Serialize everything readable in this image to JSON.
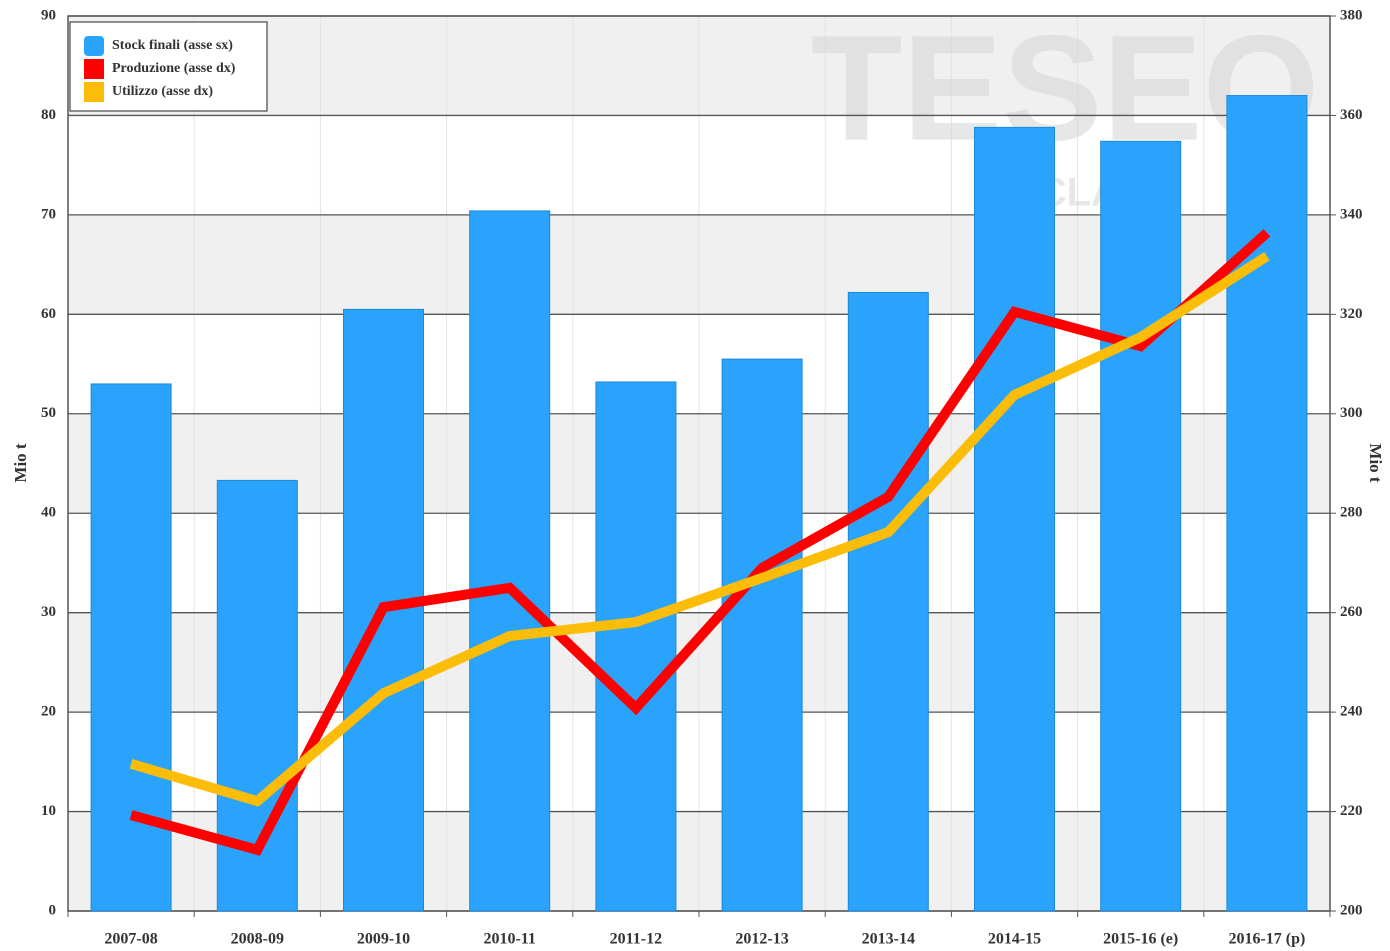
{
  "chart_data": {
    "type": "bar_line",
    "categories": [
      "2007-08",
      "2008-09",
      "2009-10",
      "2010-11",
      "2011-12",
      "2012-13",
      "2013-14",
      "2014-15",
      "2015-16 (e)",
      "2016-17 (p)"
    ],
    "series": [
      {
        "name": "Stock finali (asse sx)",
        "color": "#29a3fb",
        "type": "bar",
        "values": [
          53.0,
          43.3,
          60.5,
          70.4,
          53.2,
          55.5,
          62.2,
          78.8,
          77.4,
          82.0
        ]
      },
      {
        "name": "Produzione (asse dx)",
        "color": "#ff0000",
        "type": "line",
        "axis": "y2",
        "values": [
          219.3,
          212.3,
          261.1,
          265.0,
          240.8,
          269.0,
          283.3,
          320.5,
          313.6,
          336.4
        ]
      },
      {
        "name": "Utilizzo (asse dx)",
        "color": "#fbbd08",
        "type": "line",
        "axis": "y2",
        "values": [
          229.6,
          222.1,
          243.8,
          255.3,
          258.1,
          267.0,
          276.2,
          303.8,
          315.4,
          331.7
        ]
      }
    ],
    "ylabel": "Mio t",
    "y2label": "Mio t",
    "ylim": [
      0,
      90
    ],
    "yticks": [
      0,
      10,
      20,
      30,
      40,
      50,
      60,
      70,
      80,
      90
    ],
    "y2lim": [
      200,
      380
    ],
    "y2ticks": [
      200,
      220,
      240,
      260,
      280,
      300,
      320,
      340,
      360,
      380
    ],
    "grid": true,
    "legend": "upper left",
    "watermark": "TESEO",
    "watermark_sub": "by CLAL.it"
  }
}
